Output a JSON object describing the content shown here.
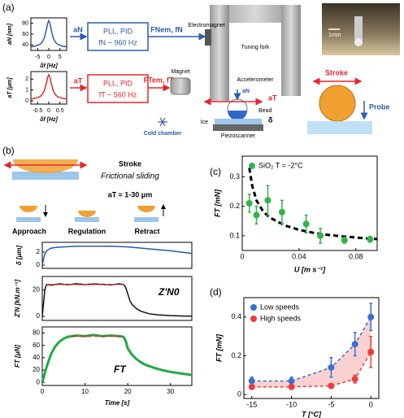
{
  "panel_labels": [
    "(a)",
    "(b)",
    "(c)",
    "(d)"
  ],
  "diagram_a": {
    "box_n": [
      "PLL, PID",
      "fN ~ 960 Hz"
    ],
    "arrow_n_in": "aN",
    "arrow_n_out": "FNem, fN",
    "box_t": [
      "PLL, PID",
      "fT ~ 560 Hz"
    ],
    "arrow_t_in": "aT",
    "arrow_t_out": "FTem, fT",
    "electromagnet": "Electromagnet",
    "magnet": "Magnet",
    "tuning_fork": "Tuning fork",
    "accelerometer": "Accelerometer",
    "bead": "Bead",
    "ice": "Ice",
    "piezoscanner": "Piezoscanner",
    "cold_chamber": "Cold chamber",
    "delta": "δ",
    "bead_an": "aN",
    "bead_at": "aT",
    "scale": "1mm",
    "stroke": "Stroke",
    "probe": "Probe"
  },
  "diagram_b": {
    "title": "Stroke",
    "subtitle": "Frictional sliding",
    "amplitude": "aT ≈ 1-30 μm",
    "steps": [
      "Approach",
      "Regulation",
      "Retract"
    ]
  },
  "chart_data": [
    {
      "type": "line",
      "ylabel": "aN [nm]",
      "xlabel": "δf [Hz]",
      "xlim": [
        -8,
        8
      ],
      "ylim": [
        30,
        90
      ],
      "xticks": [
        -5,
        0,
        5
      ],
      "yticks": [
        40,
        60,
        80
      ],
      "x": [
        -8,
        -6,
        -4,
        -3,
        -2,
        -1,
        -0.5,
        0,
        0.5,
        1,
        2,
        3,
        4,
        6,
        8
      ],
      "series": [
        {
          "color": "#2a5caa",
          "values": [
            36.7,
            37.9,
            41.2,
            45,
            53,
            69.6,
            80,
            85,
            80,
            69.6,
            53,
            45,
            41.2,
            37.9,
            36.7
          ]
        }
      ]
    },
    {
      "type": "line",
      "ylabel": "aT [μm]",
      "xlabel": "δf [Hz]",
      "xlim": [
        -0.8,
        0.8
      ],
      "ylim": [
        -0.3,
        2.7
      ],
      "xticks": [
        -0.5,
        0,
        0.5
      ],
      "yticks": [
        0,
        1,
        2
      ],
      "x": [
        -0.8,
        -0.6,
        -0.4,
        -0.3,
        -0.2,
        -0.1,
        -0.05,
        0,
        0.05,
        0.1,
        0.2,
        0.3,
        0.4,
        0.6,
        0.8
      ],
      "series": [
        {
          "color": "#e8262b",
          "values": [
            0.18,
            0.24,
            0.38,
            0.56,
            0.93,
            1.69,
            2.17,
            2.4,
            2.17,
            1.69,
            0.93,
            0.56,
            0.38,
            0.24,
            0.18
          ]
        }
      ]
    },
    {
      "type": "line",
      "ylabel": "δ [μm]",
      "xlim": [
        0,
        35
      ],
      "ylim": [
        -0.5,
        3.5
      ],
      "yticks": [
        0,
        2
      ],
      "x": [
        0,
        0.5,
        1,
        2,
        3,
        5,
        8,
        12,
        16,
        20,
        25,
        30,
        35
      ],
      "series": [
        {
          "color": "#2a5caa",
          "values": [
            0,
            1.5,
            2.2,
            2.6,
            2.7,
            2.8,
            2.9,
            2.9,
            2.9,
            2.8,
            2.5,
            2.2,
            1.8
          ]
        }
      ]
    },
    {
      "type": "line",
      "ylabel": "Z'N [kN.m⁻¹]",
      "xlim": [
        0,
        35
      ],
      "ylim": [
        -3,
        30
      ],
      "yticks": [
        0,
        20
      ],
      "x": [
        0,
        0.3,
        0.6,
        1,
        2,
        4,
        6,
        8,
        10,
        12,
        14,
        16,
        18,
        19,
        19.5,
        20,
        20.5,
        21,
        22,
        23,
        24,
        25,
        27,
        30,
        33,
        35
      ],
      "series": [
        {
          "color": "#111111",
          "values": [
            0,
            10,
            20,
            24,
            23.5,
            24.5,
            23.8,
            24.6,
            23.9,
            24.4,
            24.1,
            23.7,
            24.5,
            24,
            22,
            17,
            12,
            9,
            6,
            4,
            3,
            2,
            1.2,
            0.6,
            0.3,
            0.2
          ]
        }
      ],
      "reference": {
        "label": "Z'N0",
        "value": 24,
        "x": [
          1,
          19
        ],
        "color": "#e8262b"
      }
    },
    {
      "type": "line",
      "ylabel": "FT [μN]",
      "xlabel": "Time [s]",
      "xlim": [
        0,
        35
      ],
      "ylim": [
        -5,
        90
      ],
      "xticks": [
        0,
        10,
        20,
        30
      ],
      "yticks": [
        0,
        20,
        40,
        60,
        80
      ],
      "x": [
        0,
        1,
        2,
        3,
        4,
        5,
        6,
        7,
        8,
        10,
        12,
        14,
        16,
        18,
        19,
        19.5,
        20,
        21,
        22,
        23,
        24,
        26,
        28,
        30,
        32,
        35
      ],
      "series": [
        {
          "color": "#22aa44",
          "values": [
            0,
            25,
            45,
            58,
            66,
            71,
            74,
            75,
            76,
            75,
            77,
            75,
            76,
            75,
            74,
            68,
            55,
            45,
            38,
            33,
            29,
            24,
            20,
            17,
            15,
            12
          ]
        }
      ],
      "reference": {
        "label": "FT",
        "value": 75,
        "x": [
          7,
          19
        ],
        "color": "#e8262b"
      }
    },
    {
      "type": "scatter",
      "ylabel": "FT [mN]",
      "xlabel": "U [m s⁻¹]",
      "xlim": [
        0,
        0.095
      ],
      "ylim": [
        0.05,
        0.37
      ],
      "xticks": [
        0,
        0.04,
        0.08
      ],
      "yticks": [
        0.1,
        0.2,
        0.3
      ],
      "x": [
        0.005,
        0.01,
        0.018,
        0.028,
        0.045,
        0.055,
        0.072,
        0.09
      ],
      "series": [
        {
          "name": "SiO₂ T = -2°C",
          "color": "#33b24a",
          "values": [
            0.21,
            0.17,
            0.22,
            0.18,
            0.14,
            0.1,
            0.085,
            0.088
          ],
          "errors": [
            0.03,
            0.03,
            0.05,
            0.04,
            0.03,
            0.025,
            0.01,
            0.01
          ]
        }
      ],
      "fit": {
        "color": "#000000",
        "x": [
          0.005,
          0.007,
          0.01,
          0.015,
          0.02,
          0.03,
          0.04,
          0.05,
          0.06,
          0.07,
          0.08,
          0.09,
          0.095
        ],
        "values": [
          0.33,
          0.27,
          0.22,
          0.18,
          0.16,
          0.135,
          0.12,
          0.11,
          0.103,
          0.098,
          0.094,
          0.09,
          0.089
        ]
      }
    },
    {
      "type": "line",
      "ylabel": "FT [mN]",
      "xlabel": "T [°C]",
      "xlim": [
        -16,
        1
      ],
      "ylim": [
        -0.02,
        0.5
      ],
      "xticks": [
        -15,
        -10,
        -5,
        0
      ],
      "yticks": [
        0,
        0.2,
        0.4
      ],
      "x": [
        -15,
        -10,
        -5,
        -2,
        0
      ],
      "fill_between": "#f6b3b3",
      "series": [
        {
          "name": "Low speeds",
          "color": "#3d6fd1",
          "values": [
            0.07,
            0.07,
            0.14,
            0.26,
            0.4
          ],
          "errors": [
            0.02,
            0.02,
            0.05,
            0.06,
            0.07
          ]
        },
        {
          "name": "High speeds",
          "color": "#ee3b3b",
          "values": [
            0.04,
            0.04,
            0.045,
            0.08,
            0.22
          ],
          "errors": [
            0.01,
            0.01,
            0.01,
            0.02,
            0.08
          ]
        }
      ]
    }
  ]
}
